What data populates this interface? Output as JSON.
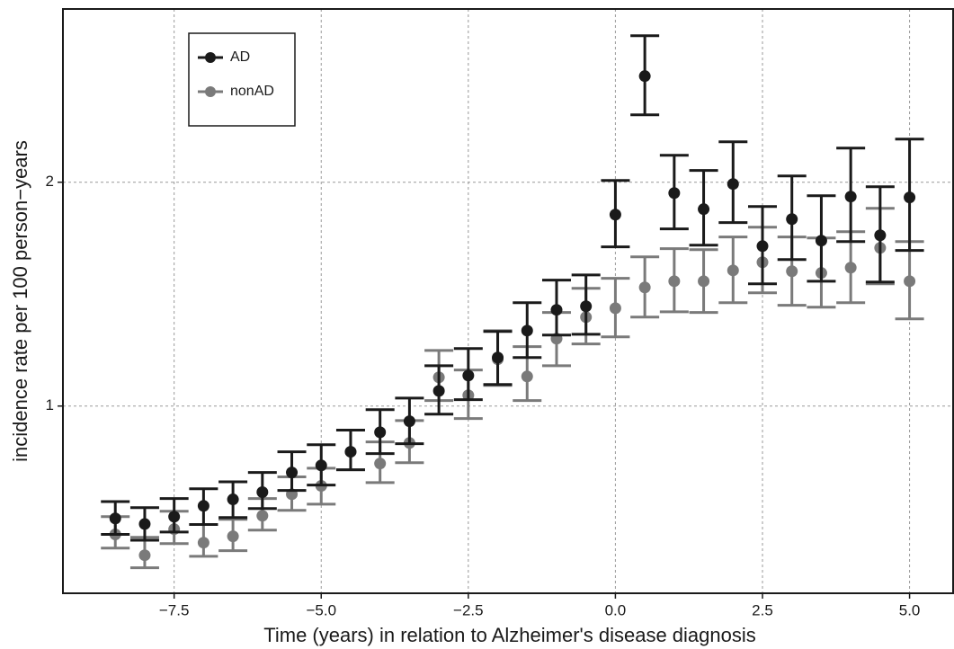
{
  "chart_data": {
    "type": "errorbar",
    "xlabel": "Time (years) in relation to Alzheimer's disease diagnosis",
    "ylabel": "incidence rate per 100 person−years",
    "x": [
      -8.5,
      -8,
      -7.5,
      -7,
      -6.5,
      -6,
      -5.5,
      -5,
      -4.5,
      -4,
      -3.5,
      -3,
      -2.5,
      -2,
      -1.5,
      -1,
      -0.5,
      0,
      0.5,
      1,
      1.5,
      2,
      2.5,
      3,
      3.5,
      4,
      4.5,
      5
    ],
    "series": [
      {
        "name": "AD",
        "color": "#1a1a1a",
        "values": [
          0.706,
          0.694,
          0.71,
          0.734,
          0.749,
          0.766,
          0.814,
          0.832,
          0.868,
          0.922,
          0.954,
          1.048,
          1.099,
          1.162,
          1.263,
          1.347,
          1.362,
          1.809,
          2.778,
          1.934,
          1.84,
          1.989,
          1.641,
          1.784,
          1.669,
          1.913,
          1.697,
          1.908
        ],
        "lower": [
          0.672,
          0.66,
          0.677,
          0.693,
          0.708,
          0.728,
          0.77,
          0.783,
          0.821,
          0.863,
          0.89,
          0.975,
          1.02,
          1.069,
          1.162,
          1.246,
          1.249,
          1.637,
          2.464,
          1.731,
          1.646,
          1.765,
          1.46,
          1.574,
          1.472,
          1.664,
          1.468,
          1.619
        ],
        "upper": [
          0.744,
          0.73,
          0.751,
          0.774,
          0.791,
          0.814,
          0.868,
          0.887,
          0.928,
          0.989,
          1.025,
          1.133,
          1.195,
          1.26,
          1.377,
          1.477,
          1.501,
          2.011,
          3.148,
          2.174,
          2.074,
          2.267,
          1.855,
          2.039,
          1.918,
          2.223,
          1.972,
          2.286
        ]
      },
      {
        "name": "nonAD",
        "color": "#7a7a7a",
        "values": [
          0.672,
          0.63,
          0.683,
          0.655,
          0.668,
          0.712,
          0.761,
          0.781,
          0.868,
          0.837,
          0.892,
          1.093,
          1.034,
          1.156,
          1.096,
          1.232,
          1.317,
          1.354,
          1.444,
          1.472,
          1.472,
          1.522,
          1.561,
          1.518,
          1.51,
          1.535,
          1.632,
          1.472
        ],
        "lower": [
          0.644,
          0.606,
          0.653,
          0.628,
          0.639,
          0.681,
          0.724,
          0.738,
          0.821,
          0.789,
          0.839,
          1.017,
          0.962,
          1.066,
          1.017,
          1.133,
          1.212,
          1.239,
          1.317,
          1.339,
          1.336,
          1.377,
          1.42,
          1.366,
          1.358,
          1.377,
          1.46,
          1.31
        ],
        "upper": [
          0.71,
          0.666,
          0.722,
          0.693,
          0.704,
          0.751,
          0.803,
          0.825,
          0.928,
          0.895,
          0.956,
          1.188,
          1.118,
          1.263,
          1.202,
          1.336,
          1.44,
          1.485,
          1.587,
          1.628,
          1.623,
          1.688,
          1.74,
          1.688,
          1.683,
          1.716,
          1.845,
          1.664
        ]
      }
    ],
    "xlim": [
      -9.39,
      5.74
    ],
    "xticks": [
      {
        "value": -7.5,
        "label": "−7.5"
      },
      {
        "value": -5,
        "label": "−5.0"
      },
      {
        "value": -2.5,
        "label": "−2.5"
      },
      {
        "value": 0,
        "label": "0.0"
      },
      2.5,
      {
        "value": 5,
        "label": "5.0"
      }
    ],
    "ylim": [
      0.56,
      3.42
    ],
    "yticks": [
      1,
      2
    ],
    "log_scale": true,
    "grid": true,
    "legend": "upper-left"
  }
}
